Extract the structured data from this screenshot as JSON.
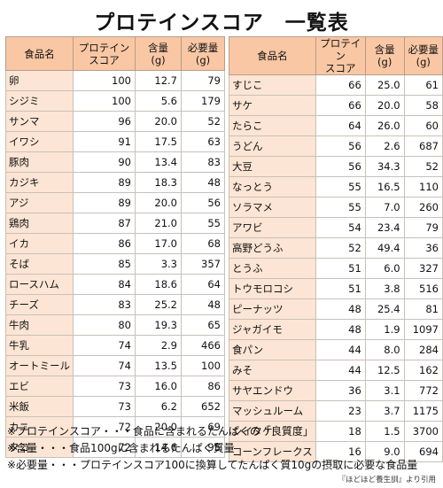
{
  "title": "プロテインスコア　一覧表",
  "headers": {
    "name": "食品名",
    "score": "プロテイン\nスコア",
    "amount": "含量\n(g)",
    "required": "必要量\n(g)"
  },
  "left_rows": [
    {
      "name": "卵",
      "score": "100",
      "amount": "12.7",
      "required": "79"
    },
    {
      "name": "シジミ",
      "score": "100",
      "amount": "5.6",
      "required": "179"
    },
    {
      "name": "サンマ",
      "score": "96",
      "amount": "20.0",
      "required": "52"
    },
    {
      "name": "イワシ",
      "score": "91",
      "amount": "17.5",
      "required": "63"
    },
    {
      "name": "豚肉",
      "score": "90",
      "amount": "13.4",
      "required": "83"
    },
    {
      "name": "カジキ",
      "score": "89",
      "amount": "18.3",
      "required": "48"
    },
    {
      "name": "アジ",
      "score": "89",
      "amount": "20.0",
      "required": "56"
    },
    {
      "name": "鶏肉",
      "score": "87",
      "amount": "21.0",
      "required": "55"
    },
    {
      "name": "イカ",
      "score": "86",
      "amount": "17.0",
      "required": "68"
    },
    {
      "name": "そば",
      "score": "85",
      "amount": "3.3",
      "required": "357"
    },
    {
      "name": "ロースハム",
      "score": "84",
      "amount": "18.6",
      "required": "64"
    },
    {
      "name": "チーズ",
      "score": "83",
      "amount": "25.2",
      "required": "48"
    },
    {
      "name": "牛肉",
      "score": "80",
      "amount": "19.3",
      "required": "65"
    },
    {
      "name": "牛乳",
      "score": "74",
      "amount": "2.9",
      "required": "466"
    },
    {
      "name": "オートミール",
      "score": "74",
      "amount": "13.5",
      "required": "100"
    },
    {
      "name": "エビ",
      "score": "73",
      "amount": "16.0",
      "required": "86"
    },
    {
      "name": "米飯",
      "score": "73",
      "amount": "6.2",
      "required": "652"
    },
    {
      "name": "カニ",
      "score": "72",
      "amount": "20.0",
      "required": "69"
    },
    {
      "name": "タコ",
      "score": "72",
      "amount": "14.6",
      "required": "95"
    }
  ],
  "right_rows": [
    {
      "name": "すじこ",
      "score": "66",
      "amount": "25.0",
      "required": "61"
    },
    {
      "name": "サケ",
      "score": "66",
      "amount": "20.0",
      "required": "58"
    },
    {
      "name": "たらこ",
      "score": "64",
      "amount": "26.0",
      "required": "60"
    },
    {
      "name": "うどん",
      "score": "56",
      "amount": "2.6",
      "required": "687"
    },
    {
      "name": "大豆",
      "score": "56",
      "amount": "34.3",
      "required": "52"
    },
    {
      "name": "なっとう",
      "score": "55",
      "amount": "16.5",
      "required": "110"
    },
    {
      "name": "ソラマメ",
      "score": "55",
      "amount": "7.0",
      "required": "260"
    },
    {
      "name": "アワビ",
      "score": "54",
      "amount": "23.4",
      "required": "79"
    },
    {
      "name": "高野どうふ",
      "score": "52",
      "amount": "49.4",
      "required": "36"
    },
    {
      "name": "とうふ",
      "score": "51",
      "amount": "6.0",
      "required": "327"
    },
    {
      "name": "トウモロコシ",
      "score": "51",
      "amount": "3.8",
      "required": "516"
    },
    {
      "name": "ピーナッツ",
      "score": "48",
      "amount": "25.4",
      "required": "81"
    },
    {
      "name": "ジャガイモ",
      "score": "48",
      "amount": "1.9",
      "required": "1097"
    },
    {
      "name": "食パン",
      "score": "44",
      "amount": "8.0",
      "required": "284"
    },
    {
      "name": "みそ",
      "score": "44",
      "amount": "12.5",
      "required": "162"
    },
    {
      "name": "サヤエンドウ",
      "score": "36",
      "amount": "3.1",
      "required": "772"
    },
    {
      "name": "マッシュルーム",
      "score": "23",
      "amount": "3.7",
      "required": "1175"
    },
    {
      "name": "シイタケ",
      "score": "18",
      "amount": "1.5",
      "required": "3700"
    },
    {
      "name": "コーンフレークス",
      "score": "16",
      "amount": "9.0",
      "required": "694"
    }
  ],
  "notes": [
    "※プロテインスコア・・・食品に含まれるたんぱくの「良質度」",
    "※含量・・・食品100gに含まれるたんぱく質量",
    "※必要量・・・プロテインスコア100に換算してたんぱく質10gの摂取に必要な食品量"
  ],
  "source": "『ほどほど養生訓』より引用",
  "colors": {
    "header_bg": "#f9c7a4",
    "name_cell_bg": "#fce5d4",
    "border": "#c9c0b8"
  }
}
